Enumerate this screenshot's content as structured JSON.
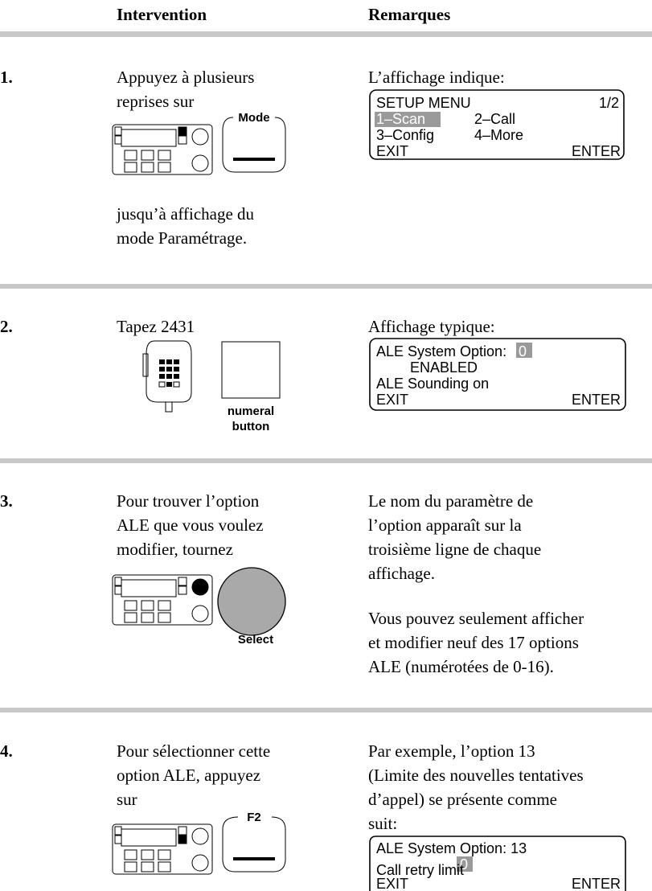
{
  "header": {
    "intervention": "Intervention",
    "remarques": "Remarques"
  },
  "steps": [
    {
      "number": "1.",
      "intervention": [
        "Appuyez à plusieurs",
        "reprises sur"
      ],
      "button_label": "Mode",
      "after": [
        "jusqu’à affichage du",
        "mode Paramétrage."
      ],
      "remarks": [
        "L’affichage indique:"
      ],
      "display": {
        "line1": "SETUP MENU",
        "page": "1/2",
        "line2a": "1–Scan",
        "line2b": "2–Call",
        "line3a": "3–Config",
        "line3b": "4–More",
        "exit": "EXIT",
        "enter": "ENTER"
      }
    },
    {
      "number": "2.",
      "intervention": [
        "Tapez 2431"
      ],
      "button_label": [
        "numeral",
        "button"
      ],
      "remarks": [
        "Affichage typique:"
      ],
      "display": {
        "line1": "ALE System Option:",
        "value": "0",
        "line2": "ENABLED",
        "line3": "ALE Sounding on",
        "exit": "EXIT",
        "enter": "ENTER"
      }
    },
    {
      "number": "3.",
      "intervention": [
        "Pour trouver l’option",
        "ALE que vous voulez",
        "modifier, tournez"
      ],
      "button_label": "Select",
      "remarks": [
        "Le nom du paramètre de",
        "l’option apparaît sur la",
        "troisième ligne de chaque",
        "affichage."
      ],
      "remarks2": [
        "Vous pouvez seulement afficher",
        "et modifier neuf des 17 options",
        "ALE (numérotées de 0-16)."
      ]
    },
    {
      "number": "4.",
      "intervention": [
        "Pour sélectionner cette",
        "option ALE, appuyez",
        "sur"
      ],
      "button_label": "F2",
      "remarks": [
        "Par exemple, l’option 13",
        "(Limite des nouvelles tentatives",
        "d’appel) se présente comme",
        "suit:"
      ],
      "display": {
        "line1": "ALE System Option: 13",
        "value": "0",
        "line3": "Call retry limit",
        "exit": "EXIT",
        "enter": "ENTER"
      }
    }
  ]
}
